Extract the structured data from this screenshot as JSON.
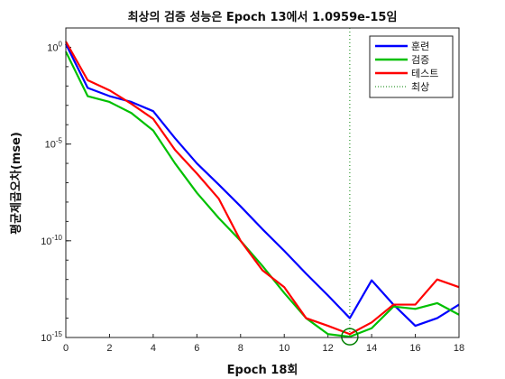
{
  "chart_data": {
    "type": "line",
    "title": "최상의 검증 성능은 Epoch 13에서 1.0959e-15임",
    "xlabel": "Epoch 18회",
    "ylabel": "평균제곱오차(mse)",
    "xlim": [
      0,
      18
    ],
    "ylim": [
      1e-15,
      10.0
    ],
    "y_scale": "log",
    "x_ticks": [
      "0",
      "2",
      "4",
      "6",
      "8",
      "10",
      "12",
      "14",
      "16",
      "18"
    ],
    "y_ticks": [
      {
        "value": 1,
        "base": "10",
        "exp": "0"
      },
      {
        "value": 1e-05,
        "base": "10",
        "exp": "-5"
      },
      {
        "value": 1e-10,
        "base": "10",
        "exp": "-10"
      },
      {
        "value": 1e-15,
        "base": "10",
        "exp": "-15"
      }
    ],
    "grid": false,
    "legend_position": "top-right",
    "x": [
      0,
      1,
      2,
      3,
      4,
      5,
      6,
      7,
      8,
      9,
      10,
      11,
      12,
      13,
      14,
      15,
      16,
      17,
      18
    ],
    "series": [
      {
        "name": "훈련",
        "color": "#0000ff",
        "values": [
          1.5,
          0.008,
          0.003,
          0.0015,
          0.0005,
          2e-05,
          1e-06,
          8e-08,
          6e-09,
          4e-10,
          3e-11,
          2e-12,
          1.5e-13,
          1e-14,
          9e-13,
          5e-14,
          4e-15,
          1e-14,
          5e-14
        ]
      },
      {
        "name": "검증",
        "color": "#00c000",
        "values": [
          0.6,
          0.003,
          0.0015,
          0.0004,
          5e-05,
          1e-06,
          3e-08,
          1.5e-09,
          1e-10,
          5e-12,
          2e-13,
          1e-14,
          1.5e-15,
          1.0959e-15,
          3e-15,
          4e-14,
          3e-14,
          6e-14,
          1.5e-14
        ]
      },
      {
        "name": "테스트",
        "color": "#ff0000",
        "values": [
          2.0,
          0.02,
          0.006,
          0.0012,
          0.0002,
          5e-06,
          3e-07,
          1.5e-08,
          1e-10,
          3e-12,
          4e-13,
          1e-14,
          4e-15,
          1.5e-15,
          6e-15,
          5e-14,
          5e-14,
          1e-12,
          4e-13
        ]
      }
    ],
    "best": {
      "name": "최상",
      "epoch": 13,
      "value": 1.0959e-15,
      "line_color": "#008000",
      "marker_color": "#008000"
    }
  }
}
